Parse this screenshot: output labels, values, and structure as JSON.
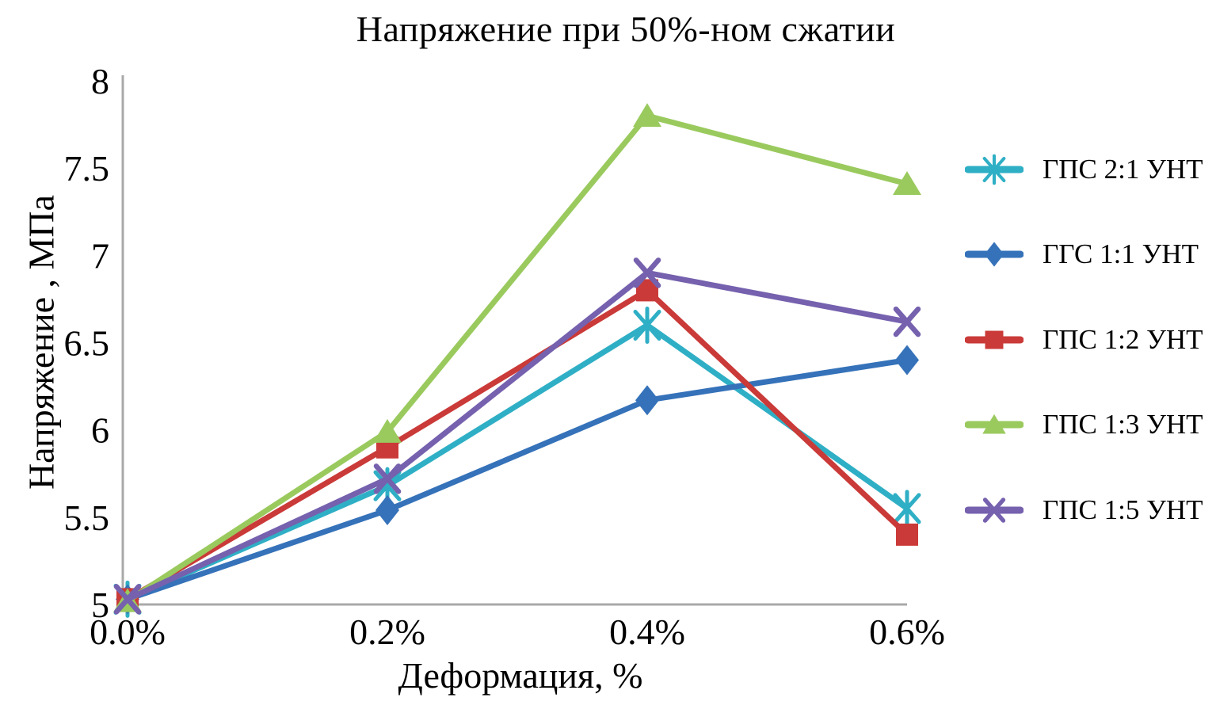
{
  "title": "Напряжение при 50%-ном сжатии",
  "colors": {
    "axis": "#a9a9a9",
    "text": "#000000",
    "background": "#ffffff",
    "series_cyan": "#2fafc5",
    "series_blue": "#3572b9",
    "series_red": "#ca3a38",
    "series_green": "#9aca5e",
    "series_purple": "#7561ae"
  },
  "chart_data": {
    "type": "line",
    "title": "Напряжение при 50%-ном сжатии",
    "xlabel": "Деформация, %",
    "ylabel": "Напряжение , МПа",
    "categories": [
      "0.0%",
      "0.2%",
      "0.4%",
      "0.6%"
    ],
    "yticks": [
      "5",
      "5.5",
      "6",
      "6.5",
      "7",
      "7.5",
      "8"
    ],
    "ylim": [
      5,
      8
    ],
    "grid": false,
    "legend_position": "right",
    "series": [
      {
        "name": "ГПС 2:1 УНТ",
        "color": "#2fafc5",
        "marker": "asterisk",
        "values": [
          5.03,
          5.68,
          6.6,
          5.55
        ]
      },
      {
        "name": "ГГС 1:1 УНТ",
        "color": "#3572b9",
        "marker": "diamond",
        "values": [
          5.03,
          5.54,
          6.17,
          6.4
        ]
      },
      {
        "name": "ГПС 1:2 УНТ",
        "color": "#ca3a38",
        "marker": "square",
        "values": [
          5.03,
          5.9,
          6.8,
          5.4
        ]
      },
      {
        "name": "ГПС 1:3 УНТ",
        "color": "#9aca5e",
        "marker": "triangle",
        "values": [
          5.02,
          5.99,
          7.8,
          7.41
        ]
      },
      {
        "name": "ГПС 1:5 УНТ",
        "color": "#7561ae",
        "marker": "x",
        "values": [
          5.03,
          5.72,
          6.9,
          6.62
        ]
      }
    ]
  }
}
